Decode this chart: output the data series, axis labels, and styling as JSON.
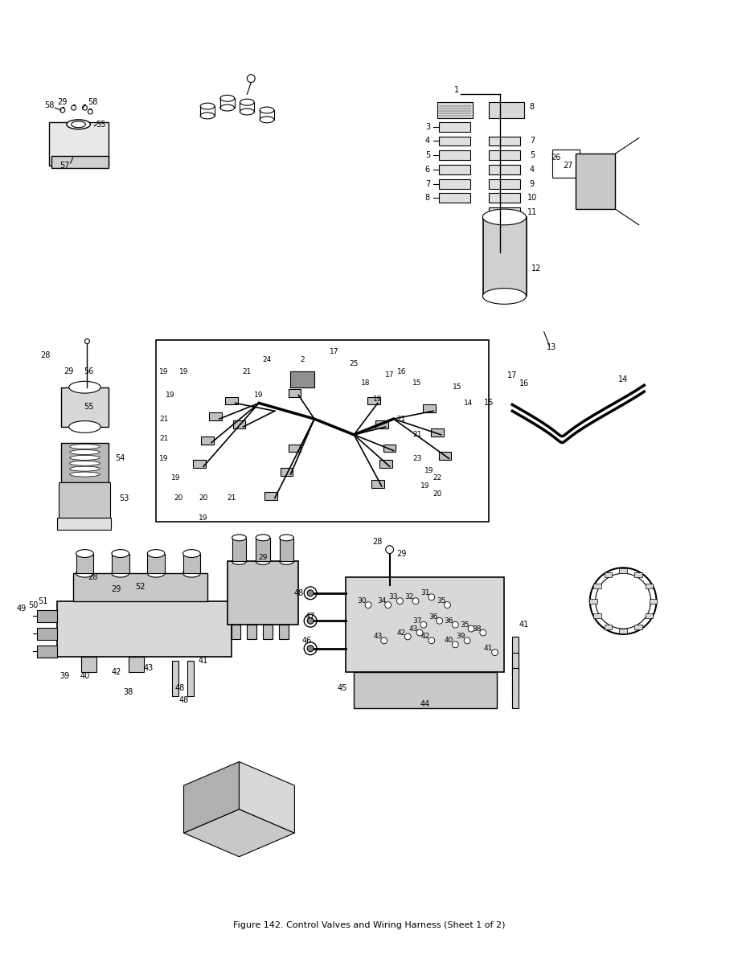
{
  "title": "Figure 142. Control Valves and Wiring Harness (Sheet 1 of 2)",
  "bg_color": "#ffffff",
  "line_color": "#000000",
  "text_color": "#000000",
  "figsize": [
    9.18,
    11.88
  ],
  "dpi": 100
}
